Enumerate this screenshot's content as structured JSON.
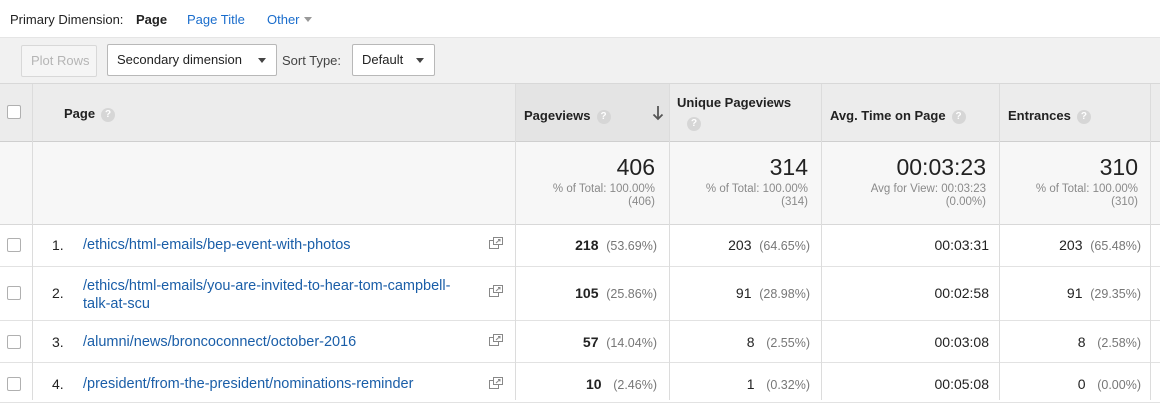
{
  "dimension_bar": {
    "label": "Primary Dimension:",
    "active": "Page",
    "page_title": "Page Title",
    "other": "Other"
  },
  "toolbar": {
    "plot_rows": "Plot Rows",
    "secondary_dimension": "Secondary dimension",
    "sort_type_label": "Sort Type:",
    "sort_type_value": "Default"
  },
  "columns": {
    "page": "Page",
    "pageviews": "Pageviews",
    "unique_pageviews": "Unique Pageviews",
    "avg_time": "Avg. Time on Page",
    "entrances": "Entrances",
    "help": "?"
  },
  "totals": {
    "pageviews": {
      "value": "406",
      "line1": "% of Total: 100.00%",
      "line2": "(406)"
    },
    "unique_pageviews": {
      "value": "314",
      "line1": "% of Total: 100.00%",
      "line2": "(314)"
    },
    "avg_time": {
      "value": "00:03:23",
      "line1": "Avg for View: 00:03:23",
      "line2": "(0.00%)"
    },
    "entrances": {
      "value": "310",
      "line1": "% of Total: 100.00%",
      "line2": "(310)"
    }
  },
  "rows": [
    {
      "num": "1.",
      "page_line1": "/ethics/html-emails/bep-event-with-photos",
      "page_line2": "",
      "pageviews": "218",
      "pageviews_pct": "(53.69%)",
      "unique": "203",
      "unique_pct": "(64.65%)",
      "avg_time": "00:03:31",
      "entrances": "203",
      "entrances_pct": "(65.48%)"
    },
    {
      "num": "2.",
      "page_line1": "/ethics/html-emails/you-are-invited-to-hear-tom-campbell-",
      "page_line2": "talk-at-scu",
      "pageviews": "105",
      "pageviews_pct": "(25.86%)",
      "unique": "91",
      "unique_pct": "(28.98%)",
      "avg_time": "00:02:58",
      "entrances": "91",
      "entrances_pct": "(29.35%)"
    },
    {
      "num": "3.",
      "page_line1": "/alumni/news/broncoconnect/october-2016",
      "page_line2": "",
      "pageviews": "57",
      "pageviews_pct": "(14.04%)",
      "unique": "8",
      "unique_pct": "(2.55%)",
      "avg_time": "00:03:08",
      "entrances": "8",
      "entrances_pct": "(2.58%)"
    },
    {
      "num": "4.",
      "page_line1": "/president/from-the-president/nominations-reminder",
      "page_line2": "",
      "pageviews": "10",
      "pageviews_pct": "(2.46%)",
      "unique": "1",
      "unique_pct": "(0.32%)",
      "avg_time": "00:05:08",
      "entrances": "0",
      "entrances_pct": "(0.00%)"
    }
  ]
}
